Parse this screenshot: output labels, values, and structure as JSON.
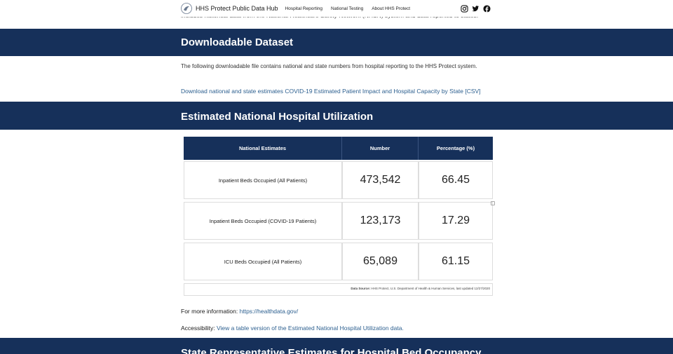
{
  "nav": {
    "brand": "HHS Protect Public Data Hub",
    "links": [
      "Hospital Reporting",
      "National Testing",
      "About HHS Protect"
    ],
    "social_icons": [
      "instagram-icon",
      "twitter-icon",
      "facebook-icon"
    ]
  },
  "cut_text": "includes historical data from the National Healthcare Safety Network (NHSN) system and data reported to states.",
  "sections": {
    "downloadable": {
      "title": "Downloadable Dataset",
      "description": "The following downloadable file contains national and state numbers from hospital reporting to the HHS Protect system.",
      "link": "Download national and state estimates COVID-19 Estimated Patient Impact and Hospital Capacity by State [CSV]"
    },
    "utilization": {
      "title": "Estimated National Hospital Utilization"
    },
    "state": {
      "title": "State Representative Estimates for Hospital Bed Occupancy"
    }
  },
  "table": {
    "headers": [
      "National Estimates",
      "Number",
      "Percentage (%)"
    ],
    "rows": [
      {
        "label": "Inpatient Beds Occupied (All Patients)",
        "number": "473,542",
        "percentage": "66.45"
      },
      {
        "label": "Inpatient Beds Occupied (COVID-19 Patients)",
        "number": "123,173",
        "percentage": "17.29"
      },
      {
        "label": "ICU Beds Occupied (All Patients)",
        "number": "65,089",
        "percentage": "61.15"
      }
    ],
    "source_label": "Data Source:",
    "source_text": "HHS Protect, U.S. Department of Health & Human Services, last updated 12/27/2020"
  },
  "info": {
    "more_label": "For more information:",
    "more_link": "https://healthdata.gov/",
    "access_label": "Accessibility:",
    "access_link": "View a table version of the Estimated National Hospital Utilization data."
  },
  "colors": {
    "band": "#16305a",
    "link": "#2c5f8f"
  }
}
